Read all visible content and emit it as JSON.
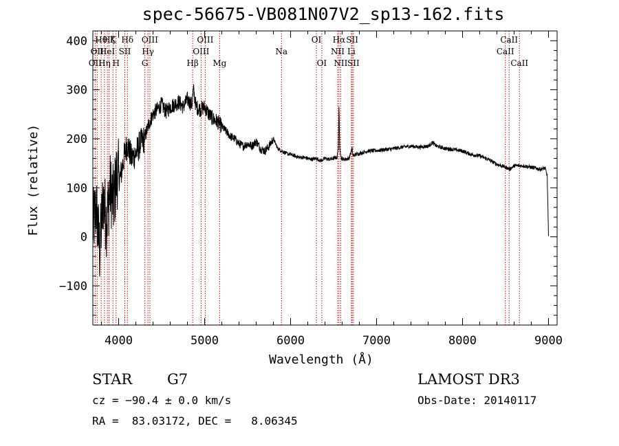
{
  "title": "spec-56675-VB081N07V2_sp13-162.fits",
  "footer": {
    "class": "STAR",
    "subclass": "G7",
    "survey": "LAMOST DR3",
    "cz": "cz = −90.4 ± 0.0 km/s",
    "obs_date": "Obs-Date: 20140117",
    "radec": "RA =  83.03172, DEC =   8.06345"
  },
  "chart_data": {
    "type": "line",
    "title": "spec-56675-VB081N07V2_sp13-162.fits",
    "xlabel": "Wavelength (Å)",
    "ylabel": "Flux (relative)",
    "xlim": [
      3700,
      9100
    ],
    "ylim": [
      -180,
      420
    ],
    "xticks": [
      4000,
      5000,
      6000,
      7000,
      8000,
      9000
    ],
    "xtick_labels": [
      "4000",
      "5000",
      "6000",
      "7000",
      "8000",
      "9000"
    ],
    "yticks": [
      -100,
      0,
      100,
      200,
      300,
      400
    ],
    "ytick_labels": [
      "−100",
      "0",
      "100",
      "200",
      "300",
      "400"
    ],
    "series": [
      {
        "x": [
          3700,
          3740,
          3780,
          3820,
          3860,
          3900,
          3940,
          3980,
          4020,
          4060,
          4100,
          4150,
          4200,
          4250,
          4300,
          4350,
          4400,
          4450,
          4500,
          4550,
          4600,
          4650,
          4700,
          4750,
          4800,
          4850,
          4870,
          4900,
          4950,
          5000,
          5050,
          5100,
          5150,
          5200,
          5250,
          5300,
          5350,
          5400,
          5450,
          5500,
          5550,
          5600,
          5650,
          5700,
          5750,
          5800,
          5850,
          5900,
          5950,
          6000,
          6050,
          6100,
          6150,
          6200,
          6250,
          6300,
          6350,
          6400,
          6450,
          6500,
          6540,
          6555,
          6563,
          6572,
          6590,
          6620,
          6680,
          6715,
          6725,
          6760,
          6800,
          6900,
          7000,
          7100,
          7200,
          7300,
          7400,
          7500,
          7600,
          7650,
          7700,
          7800,
          7900,
          8000,
          8100,
          8200,
          8300,
          8400,
          8500,
          8550,
          8600,
          8700,
          8800,
          8900,
          8960,
          8985,
          9000
        ],
        "y": [
          20,
          60,
          -30,
          80,
          30,
          100,
          70,
          130,
          120,
          160,
          190,
          160,
          170,
          190,
          200,
          230,
          250,
          260,
          270,
          255,
          265,
          270,
          275,
          265,
          280,
          270,
          300,
          265,
          260,
          265,
          250,
          240,
          235,
          225,
          215,
          205,
          200,
          190,
          185,
          190,
          185,
          195,
          180,
          175,
          185,
          200,
          180,
          175,
          170,
          168,
          165,
          162,
          162,
          160,
          158,
          160,
          155,
          160,
          158,
          160,
          162,
          180,
          270,
          180,
          160,
          158,
          160,
          180,
          165,
          168,
          170,
          175,
          176,
          178,
          180,
          183,
          185,
          183,
          185,
          192,
          185,
          180,
          178,
          175,
          168,
          165,
          158,
          148,
          142,
          138,
          145,
          145,
          142,
          138,
          140,
          125,
          0
        ]
      }
    ],
    "line_color": "#000000",
    "lines_color": "#cc0000",
    "lines": [
      {
        "wave": 3727,
        "label": "OII",
        "row": 3
      },
      {
        "wave": 3750,
        "label": "OII",
        "row": 2
      },
      {
        "wave": 3797,
        "label": "Hθ",
        "row": 1
      },
      {
        "wave": 3835,
        "label": "Hη",
        "row": 3
      },
      {
        "wave": 3869,
        "label": "HeI",
        "row": 2
      },
      {
        "wave": 3889,
        "label": "Hζ",
        "row": 1
      },
      {
        "wave": 3934,
        "label": "K",
        "row": 1
      },
      {
        "wave": 3970,
        "label": "H",
        "row": 3
      },
      {
        "wave": 4072,
        "label": "SII",
        "row": 2
      },
      {
        "wave": 4102,
        "label": "Hδ",
        "row": 1
      },
      {
        "wave": 4305,
        "label": "G",
        "row": 3
      },
      {
        "wave": 4341,
        "label": "Hγ",
        "row": 2
      },
      {
        "wave": 4363,
        "label": "OIII",
        "row": 1
      },
      {
        "wave": 4861,
        "label": "Hβ",
        "row": 3
      },
      {
        "wave": 4959,
        "label": "OIII",
        "row": 2
      },
      {
        "wave": 5007,
        "label": "OIII",
        "row": 1
      },
      {
        "wave": 5175,
        "label": "Mg",
        "row": 3
      },
      {
        "wave": 5894,
        "label": "Na",
        "row": 2
      },
      {
        "wave": 6300,
        "label": "OI",
        "row": 1
      },
      {
        "wave": 6363,
        "label": "OI",
        "row": 3
      },
      {
        "wave": 6548,
        "label": "NII",
        "row": 2
      },
      {
        "wave": 6563,
        "label": "Hα",
        "row": 1
      },
      {
        "wave": 6583,
        "label": "NII",
        "row": 3
      },
      {
        "wave": 6707,
        "label": "Li",
        "row": 2
      },
      {
        "wave": 6717,
        "label": "SII",
        "row": 1
      },
      {
        "wave": 6731,
        "label": "SII",
        "row": 3
      },
      {
        "wave": 8498,
        "label": "CaII",
        "row": 2
      },
      {
        "wave": 8542,
        "label": "CaII",
        "row": 1
      },
      {
        "wave": 8662,
        "label": "CaII",
        "row": 3
      }
    ]
  }
}
